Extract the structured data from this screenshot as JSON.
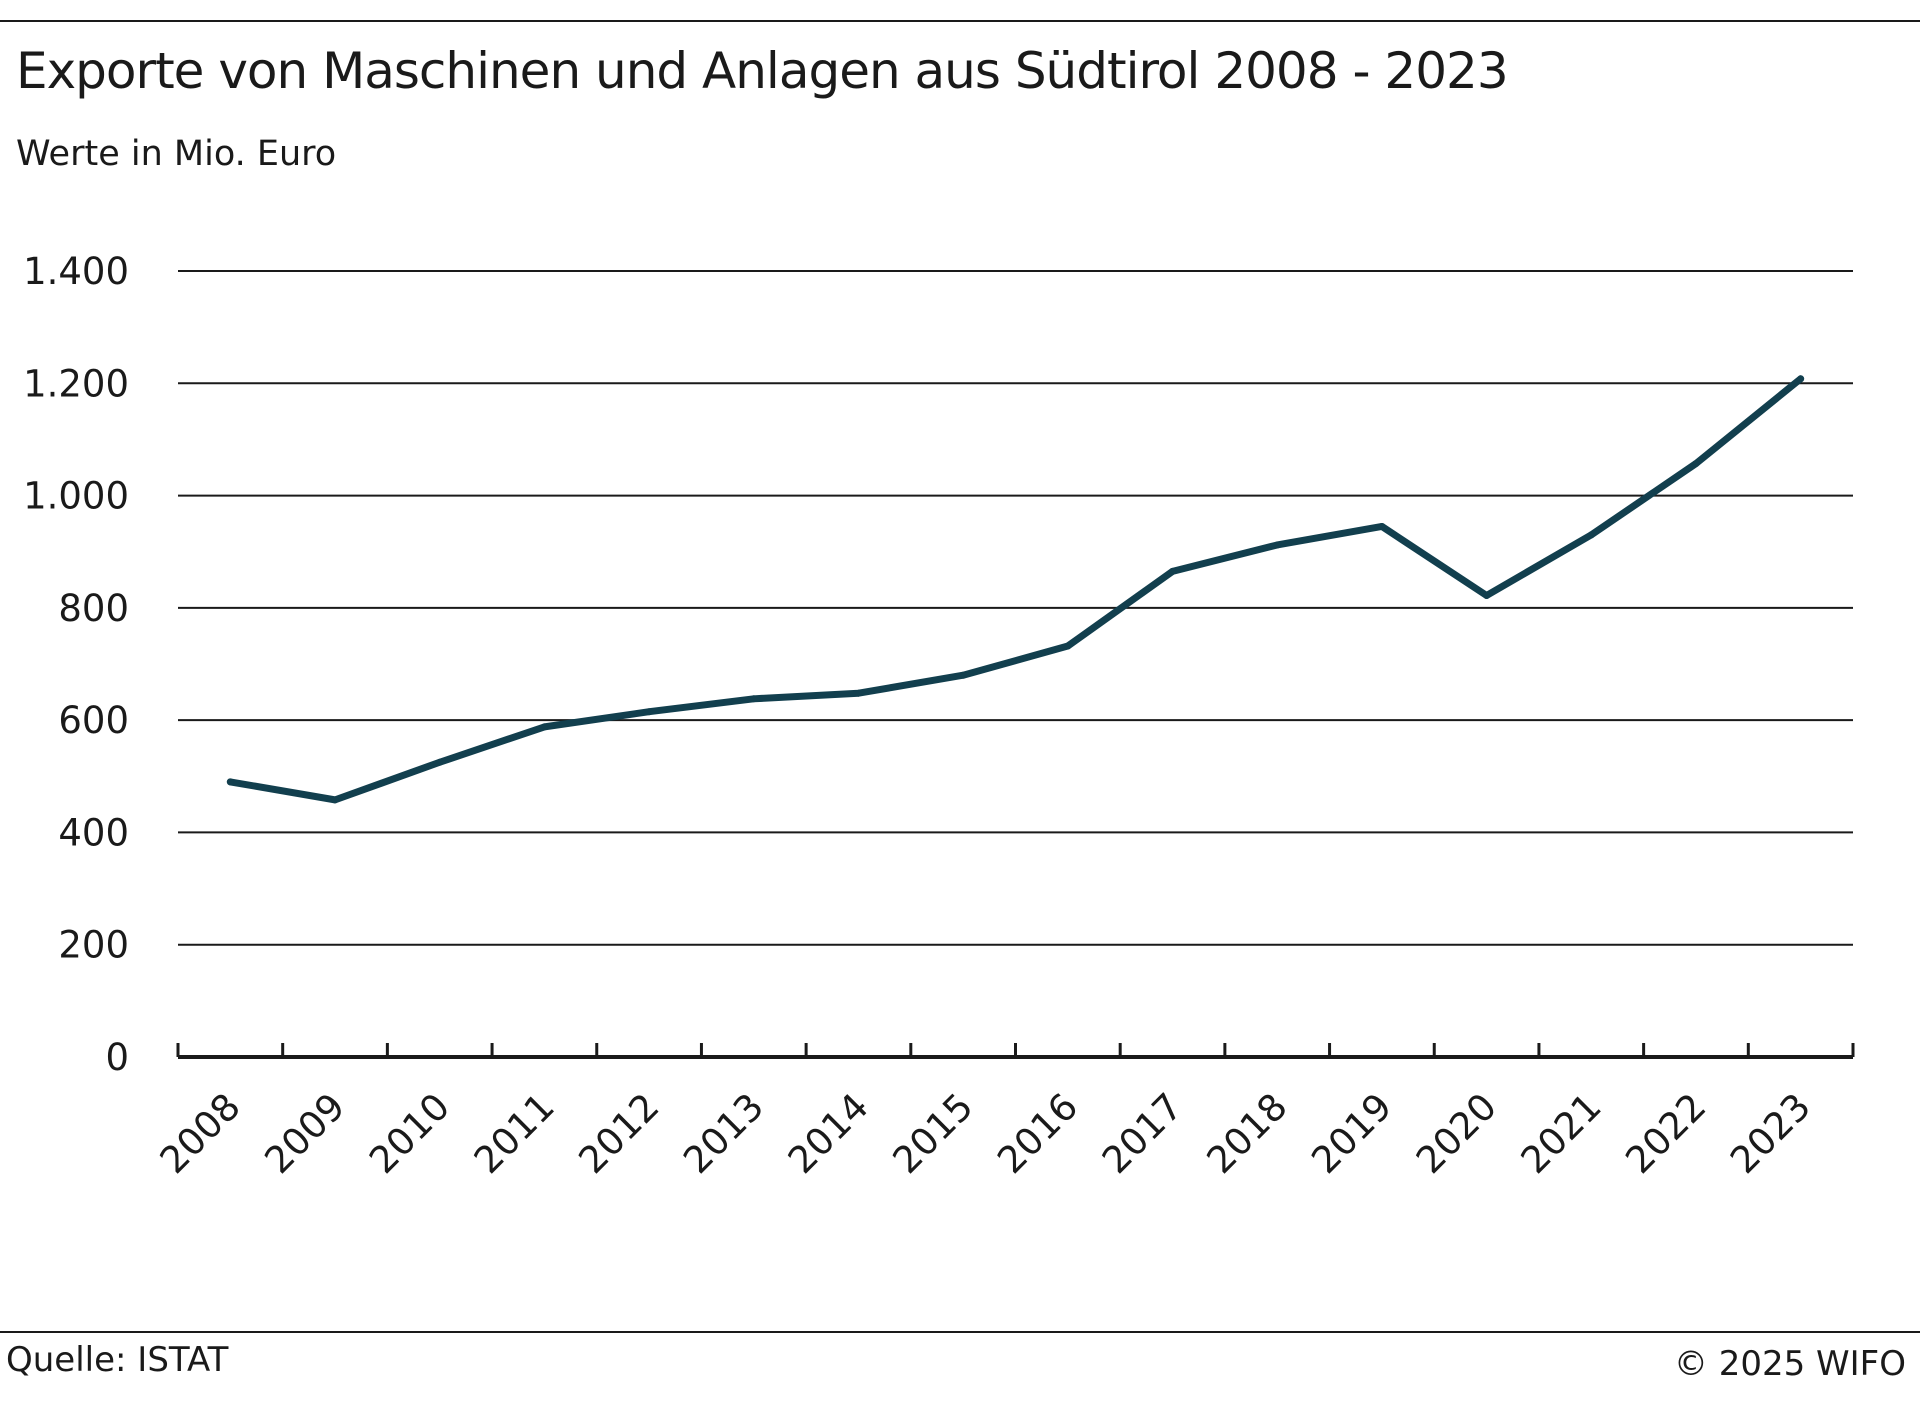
{
  "header": {
    "title": "Exporte von Maschinen und Anlagen aus Südtirol 2008 - 2023",
    "subtitle": "Werte in Mio. Euro"
  },
  "footer": {
    "source": "Quelle: ISTAT",
    "copyright": "© 2025 WIFO"
  },
  "colors": {
    "line": "#123f4e",
    "grid": "#1a1a1a",
    "text": "#1a1a1a"
  },
  "chart_data": {
    "type": "line",
    "title": "Exporte von Maschinen und Anlagen aus Südtirol 2008 - 2023",
    "subtitle": "Werte in Mio. Euro",
    "xlabel": "",
    "ylabel": "",
    "categories": [
      "2008",
      "2009",
      "2010",
      "2011",
      "2012",
      "2013",
      "2014",
      "2015",
      "2016",
      "2017",
      "2018",
      "2019",
      "2020",
      "2021",
      "2022",
      "2023"
    ],
    "series": [
      {
        "values": [
          490,
          458,
          525,
          588,
          615,
          638,
          648,
          680,
          732,
          865,
          912,
          945,
          822,
          930,
          1057,
          1208
        ]
      }
    ],
    "ylim": [
      0,
      1400
    ],
    "yticks": [
      0,
      200,
      400,
      600,
      800,
      1000,
      1200,
      1400
    ],
    "ytick_labels": [
      "0",
      "200",
      "400",
      "600",
      "800",
      "1.000",
      "1.200",
      "1.400"
    ],
    "grid": true,
    "legend": "none"
  }
}
